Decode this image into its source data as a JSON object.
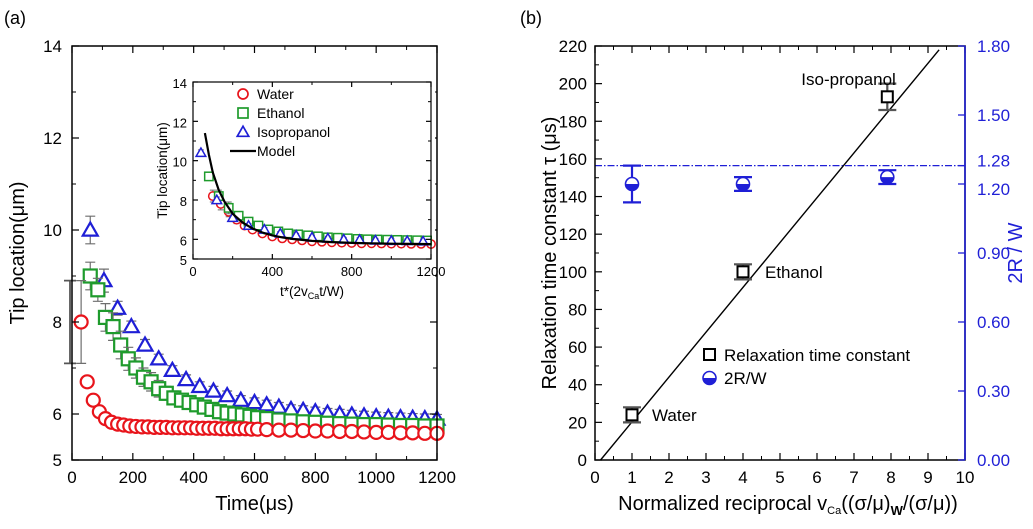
{
  "colors": {
    "water": "#e8141b",
    "ethanol": "#1e9b2c",
    "isopropanol": "#1f1fd6",
    "errorbar": "#6e6e6e",
    "model": "#000000",
    "right_axis": "#1f1fd6"
  },
  "chart_data": [
    {
      "panel_label": "(a)",
      "type": "scatter",
      "xlabel": "Time(μs)",
      "ylabel": "Tip location(μm)",
      "xlim": [
        0,
        1200
      ],
      "ylim": [
        5,
        14
      ],
      "xticks": [
        "0",
        "200",
        "400",
        "600",
        "800",
        "1000",
        "1200"
      ],
      "yticks": [
        "5",
        "6",
        "8",
        "10",
        "12",
        "14"
      ],
      "series": [
        {
          "name": "Water",
          "marker": "circle",
          "x": [
            30,
            50,
            70,
            90,
            110,
            130,
            150,
            170,
            190,
            210,
            230,
            250,
            270,
            290,
            310,
            330,
            350,
            370,
            390,
            410,
            430,
            450,
            470,
            490,
            510,
            530,
            550,
            570,
            590,
            610,
            640,
            680,
            720,
            760,
            800,
            840,
            880,
            920,
            960,
            1000,
            1040,
            1080,
            1120,
            1160,
            1200
          ],
          "y": [
            8.0,
            6.7,
            6.3,
            6.05,
            5.9,
            5.82,
            5.78,
            5.76,
            5.74,
            5.73,
            5.72,
            5.72,
            5.71,
            5.71,
            5.71,
            5.7,
            5.7,
            5.7,
            5.7,
            5.69,
            5.69,
            5.69,
            5.69,
            5.68,
            5.68,
            5.68,
            5.68,
            5.68,
            5.67,
            5.67,
            5.66,
            5.65,
            5.65,
            5.64,
            5.63,
            5.63,
            5.62,
            5.62,
            5.61,
            5.6,
            5.6,
            5.59,
            5.59,
            5.58,
            5.58
          ],
          "err": [
            0.9,
            0.1,
            0.08,
            0.08,
            0.07,
            0.06,
            0.06,
            0.05,
            0.05,
            0.05,
            0.05,
            0.05,
            0.05,
            0.05,
            0.05,
            0.05,
            0.05,
            0.05,
            0.05,
            0.05,
            0.05,
            0.05,
            0.05,
            0.05,
            0.05,
            0.05,
            0.05,
            0.05,
            0.05,
            0.05,
            0.05,
            0.05,
            0.05,
            0.05,
            0.05,
            0.05,
            0.05,
            0.05,
            0.05,
            0.05,
            0.05,
            0.05,
            0.05,
            0.05,
            0.05
          ]
        },
        {
          "name": "Ethanol",
          "marker": "square",
          "x": [
            60,
            85,
            110,
            135,
            160,
            185,
            210,
            235,
            260,
            285,
            310,
            335,
            360,
            385,
            410,
            435,
            460,
            485,
            510,
            535,
            560,
            585,
            610,
            640,
            680,
            720,
            760,
            800,
            840,
            880,
            920,
            960,
            1000,
            1040,
            1080,
            1120,
            1160,
            1200
          ],
          "y": [
            9.0,
            8.7,
            8.1,
            7.9,
            7.5,
            7.2,
            7.0,
            6.8,
            6.7,
            6.55,
            6.45,
            6.35,
            6.3,
            6.25,
            6.2,
            6.15,
            6.1,
            6.05,
            6.02,
            6.0,
            5.98,
            5.95,
            5.92,
            5.9,
            5.87,
            5.85,
            5.83,
            5.82,
            5.8,
            5.79,
            5.78,
            5.77,
            5.77,
            5.76,
            5.75,
            5.75,
            5.74,
            5.74
          ],
          "err": [
            0.3,
            0.25,
            0.3,
            0.3,
            0.3,
            0.25,
            0.22,
            0.2,
            0.2,
            0.18,
            0.15,
            0.15,
            0.14,
            0.13,
            0.12,
            0.12,
            0.11,
            0.1,
            0.1,
            0.1,
            0.1,
            0.1,
            0.1,
            0.1,
            0.1,
            0.1,
            0.1,
            0.1,
            0.1,
            0.1,
            0.1,
            0.1,
            0.1,
            0.1,
            0.1,
            0.1,
            0.1,
            0.1
          ]
        },
        {
          "name": "Isopropanol",
          "marker": "triangle",
          "x": [
            60,
            105,
            150,
            195,
            240,
            285,
            330,
            375,
            420,
            465,
            510,
            555,
            600,
            640,
            680,
            720,
            760,
            800,
            840,
            880,
            920,
            960,
            1000,
            1040,
            1080,
            1120,
            1160,
            1200
          ],
          "y": [
            10.0,
            8.9,
            8.3,
            7.9,
            7.5,
            7.2,
            6.95,
            6.75,
            6.6,
            6.5,
            6.4,
            6.3,
            6.25,
            6.2,
            6.15,
            6.1,
            6.08,
            6.05,
            6.02,
            6.0,
            5.98,
            5.96,
            5.94,
            5.93,
            5.92,
            5.91,
            5.9,
            5.89
          ],
          "err": [
            0.3,
            0.25,
            0.15,
            0.12,
            0.12,
            0.1,
            0.1,
            0.1,
            0.1,
            0.1,
            0.1,
            0.1,
            0.1,
            0.1,
            0.1,
            0.1,
            0.1,
            0.1,
            0.1,
            0.1,
            0.1,
            0.1,
            0.1,
            0.1,
            0.1,
            0.1,
            0.1,
            0.1
          ]
        }
      ],
      "bracket": {
        "x": 0,
        "y_top": 8.9,
        "y_bottom": 7.1
      },
      "inset": {
        "type": "scatter",
        "xlabel": "t*(2v<sub>Ca</sub>t/W)",
        "xlabel_main": "t*(2v",
        "xlabel_sub": "Ca",
        "xlabel_tail": "t/W)",
        "ylabel": "Tip location(μm)",
        "xlim": [
          0,
          1200
        ],
        "ylim": [
          5,
          14
        ],
        "xticks": [
          "0",
          "400",
          "800",
          "1200"
        ],
        "yticks": [
          "5",
          "6",
          "8",
          "10",
          "12",
          "14"
        ],
        "legend": [
          "Water",
          "Ethanol",
          "Isopropanol",
          "Model"
        ],
        "series": [
          {
            "name": "Water",
            "marker": "circle",
            "x": [
              100,
              140,
              180,
              220,
              260,
              300,
              350,
              400,
              450,
              500,
              550,
              600,
              650,
              700,
              750,
              800,
              850,
              900,
              950,
              1000,
              1050,
              1100,
              1150,
              1200
            ],
            "y": [
              8.2,
              7.8,
              7.4,
              7.0,
              6.7,
              6.5,
              6.3,
              6.15,
              6.05,
              6.0,
              5.95,
              5.9,
              5.88,
              5.85,
              5.83,
              5.82,
              5.8,
              5.8,
              5.79,
              5.78,
              5.78,
              5.77,
              5.77,
              5.76
            ],
            "err": [
              0.3,
              0.3,
              0.25,
              0.2,
              0.15,
              0.1,
              0.1,
              0.1,
              0.1,
              0.1,
              0.1,
              0.1,
              0.1,
              0.1,
              0.1,
              0.1,
              0.1,
              0.1,
              0.1,
              0.1,
              0.1,
              0.1,
              0.1,
              0.1
            ]
          },
          {
            "name": "Ethanol",
            "marker": "square",
            "x": [
              80,
              130,
              180,
              230,
              280,
              330,
              380,
              430,
              480,
              530,
              580,
              630,
              680,
              730,
              780,
              830,
              880,
              930,
              980,
              1030,
              1080,
              1130,
              1180
            ],
            "y": [
              9.2,
              8.2,
              7.6,
              7.2,
              6.9,
              6.7,
              6.5,
              6.4,
              6.3,
              6.25,
              6.2,
              6.15,
              6.1,
              6.08,
              6.05,
              6.02,
              6.0,
              5.99,
              5.98,
              5.97,
              5.96,
              5.95,
              5.94
            ],
            "err": [
              0.2,
              0.3,
              0.3,
              0.2,
              0.2,
              0.15,
              0.1,
              0.1,
              0.1,
              0.1,
              0.1,
              0.1,
              0.1,
              0.1,
              0.1,
              0.1,
              0.1,
              0.1,
              0.1,
              0.1,
              0.1,
              0.1,
              0.1
            ]
          },
          {
            "name": "Isopropanol",
            "marker": "triangle",
            "x": [
              40,
              120,
              200,
              280,
              360,
              440,
              520,
              600,
              680,
              760,
              840,
              920,
              1000,
              1080,
              1160
            ],
            "y": [
              10.4,
              8.0,
              7.1,
              6.7,
              6.5,
              6.3,
              6.2,
              6.1,
              6.05,
              6.0,
              5.98,
              5.95,
              5.93,
              5.92,
              5.9
            ],
            "err": [
              0.15,
              0.15,
              0.1,
              0.1,
              0.1,
              0.1,
              0.1,
              0.1,
              0.1,
              0.1,
              0.1,
              0.1,
              0.1,
              0.1,
              0.1
            ]
          },
          {
            "name": "Model",
            "marker": "line",
            "x": [
              60,
              80,
              100,
              130,
              160,
              200,
              250,
              300,
              350,
              400,
              450,
              500,
              600,
              700,
              800,
              900,
              1000,
              1100,
              1200
            ],
            "y": [
              11.4,
              10.3,
              9.4,
              8.5,
              7.9,
              7.3,
              6.85,
              6.55,
              6.35,
              6.2,
              6.1,
              6.02,
              5.92,
              5.86,
              5.82,
              5.8,
              5.78,
              5.77,
              5.76
            ]
          }
        ]
      }
    },
    {
      "panel_label": "(b)",
      "type": "scatter",
      "xlabel": "Normalized reciprocal v",
      "xlabel_sub": "Ca",
      "xlabel_tail1": "((σ/μ)",
      "xlabel_sub2": "W",
      "xlabel_tail2": "/(σ/μ))",
      "ylabel": "Relaxation time constant τ (μs)",
      "y2label": "2R / W",
      "xlim": [
        0,
        10
      ],
      "ylim": [
        0,
        220
      ],
      "y2lim": [
        0,
        1.8
      ],
      "xticks": [
        "0",
        "1",
        "2",
        "3",
        "4",
        "5",
        "6",
        "7",
        "8",
        "9",
        "10"
      ],
      "yticks": [
        "0",
        "20",
        "40",
        "60",
        "80",
        "100",
        "120",
        "140",
        "160",
        "180",
        "200",
        "220"
      ],
      "y2ticks": [
        "0.00",
        "0.30",
        "0.60",
        "0.90",
        "1.20",
        "1.28",
        "1.50",
        "1.80"
      ],
      "y2tick_values": [
        0.0,
        0.3,
        0.6,
        0.9,
        1.2,
        1.28,
        1.5,
        1.8
      ],
      "legend": [
        "Relaxation time constant",
        "2R/W"
      ],
      "series": [
        {
          "name": "Relaxation time constant",
          "marker": "square",
          "axis": "left",
          "x": [
            1,
            4,
            7.9
          ],
          "y": [
            24,
            100,
            193
          ],
          "err": [
            4,
            4,
            7
          ],
          "labels": [
            "Water",
            "Ethanol",
            "Iso-propanol"
          ]
        },
        {
          "name": "2R/W",
          "marker": "half-circle",
          "axis": "right",
          "x": [
            1,
            4,
            7.9
          ],
          "y": [
            1.2,
            1.2,
            1.23
          ],
          "err": [
            0.08,
            0.03,
            0.03
          ]
        }
      ],
      "fit_line": {
        "x": [
          0.15,
          9.3
        ],
        "y": [
          0,
          218
        ]
      },
      "reference_line": {
        "y2": 1.28
      }
    }
  ]
}
